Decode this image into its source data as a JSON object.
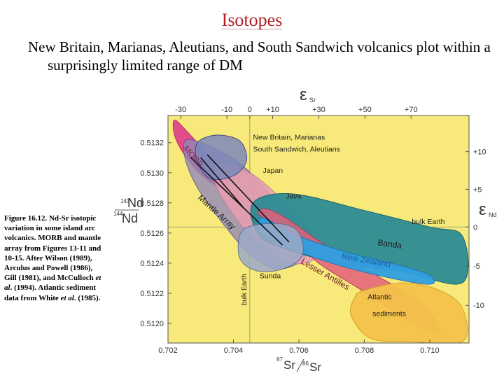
{
  "slide": {
    "title": "Isotopes",
    "subtitle": "New Britain, Marianas, Aleutians, and South Sandwich volcanics plot within a surprisingly limited range of DM",
    "caption_parts": [
      "Figure 16.12. Nd-Sr isotopic variation in some island arc volcanics. MORB and mantle array from Figures 13-11 and 10-15. After Wilson (1989), Arculus and Powell (1986), Gill (1981), and McCulloch ",
      "et al",
      ". (1994). Atlantic sediment data from White ",
      "et al",
      ". (1985)."
    ]
  },
  "colors": {
    "background": "#f7e97a",
    "morb": "#e0458a",
    "mantle_array": "#8f86b8",
    "japan": "#e89fb0",
    "banda": "#2c8c94",
    "new_zealand": "#2f9fe0",
    "lesser_antilles": "#e2607a",
    "atlantic_sediments": "#f3c24a",
    "sunda": "#9ca9c8",
    "new_britain": "#7b88b8"
  },
  "chart_data": {
    "type": "scatter",
    "x_variable": "87Sr/86Sr",
    "y_variable": "143Nd/144Nd",
    "xlim": [
      0.702,
      0.7112
    ],
    "ylim": [
      0.51187,
      0.51338
    ],
    "x_ticks": [
      0.702,
      0.704,
      0.706,
      0.708,
      0.71
    ],
    "x_tick_labels": [
      "0.702",
      "0.704",
      "0.706",
      "0.708",
      "0.710"
    ],
    "y_ticks": [
      0.512,
      0.5122,
      0.5124,
      0.5126,
      0.5128,
      0.513,
      0.5132
    ],
    "y_tick_labels": [
      "0.5120",
      "0.5122",
      "0.5124",
      "0.5126",
      "0.5128",
      "0.5130",
      "0.5132"
    ],
    "top_axis": {
      "label": "εSr",
      "ticks": [
        {
          "label": "-30",
          "x": 0.70239
        },
        {
          "label": "-10",
          "x": 0.7038
        },
        {
          "label": "0",
          "x": 0.7045
        },
        {
          "label": "+10",
          "x": 0.7052
        },
        {
          "label": "+30",
          "x": 0.70661
        },
        {
          "label": "+50",
          "x": 0.70802
        },
        {
          "label": "+70",
          "x": 0.70943
        }
      ]
    },
    "right_axis": {
      "label": "εNd",
      "ticks": [
        {
          "label": "+10",
          "y": 0.51314
        },
        {
          "label": "+5",
          "y": 0.51289
        },
        {
          "label": "0",
          "y": 0.51264
        },
        {
          "label": "-5",
          "y": 0.51238
        },
        {
          "label": "-10",
          "y": 0.51212
        }
      ]
    },
    "bulk_earth": {
      "x": 0.7045,
      "y": 0.51264,
      "x_label": "bulk Earth",
      "y_label": "bulk Earth"
    },
    "fields": [
      {
        "key": "morb",
        "name": "MORB",
        "points": [
          [
            0.7022,
            0.51335
          ],
          [
            0.7026,
            0.51327
          ],
          [
            0.7031,
            0.51315
          ],
          [
            0.7036,
            0.51303
          ],
          [
            0.7039,
            0.51296
          ],
          [
            0.7037,
            0.5129
          ],
          [
            0.7031,
            0.51297
          ],
          [
            0.7025,
            0.51312
          ],
          [
            0.7022,
            0.51325
          ]
        ]
      },
      {
        "key": "mantle_array",
        "name": "Mantle Array",
        "points": [
          [
            0.7027,
            0.51322
          ],
          [
            0.7042,
            0.51306
          ],
          [
            0.7054,
            0.51278
          ],
          [
            0.706,
            0.51258
          ],
          [
            0.7062,
            0.51244
          ],
          [
            0.7054,
            0.51236
          ],
          [
            0.7046,
            0.51244
          ],
          [
            0.7038,
            0.51263
          ],
          [
            0.7029,
            0.5129
          ],
          [
            0.7025,
            0.51312
          ]
        ]
      },
      {
        "key": "japan",
        "name": "Japan",
        "points": [
          [
            0.7036,
            0.51306
          ],
          [
            0.7045,
            0.513
          ],
          [
            0.7054,
            0.51284
          ],
          [
            0.7064,
            0.5126
          ],
          [
            0.7066,
            0.51245
          ],
          [
            0.7058,
            0.5124
          ],
          [
            0.7047,
            0.51255
          ],
          [
            0.7039,
            0.51275
          ],
          [
            0.7034,
            0.51296
          ]
        ]
      },
      {
        "key": "banda",
        "name": "Banda",
        "points": [
          [
            0.7046,
            0.5128
          ],
          [
            0.7058,
            0.51286
          ],
          [
            0.708,
            0.51275
          ],
          [
            0.71,
            0.51264
          ],
          [
            0.711,
            0.51258
          ],
          [
            0.711,
            0.51227
          ],
          [
            0.7092,
            0.51234
          ],
          [
            0.7072,
            0.5124
          ],
          [
            0.7058,
            0.51248
          ],
          [
            0.7048,
            0.51258
          ]
        ]
      },
      {
        "key": "lesser_antilles",
        "name": "Lesser Antilles",
        "points": [
          [
            0.7048,
            0.51272
          ],
          [
            0.7058,
            0.51258
          ],
          [
            0.7066,
            0.5124
          ],
          [
            0.708,
            0.51221
          ],
          [
            0.7095,
            0.512
          ],
          [
            0.7103,
            0.51195
          ],
          [
            0.7097,
            0.51214
          ],
          [
            0.7082,
            0.51234
          ],
          [
            0.7068,
            0.51252
          ],
          [
            0.7056,
            0.5127
          ],
          [
            0.705,
            0.51276
          ]
        ]
      },
      {
        "key": "new_zealand",
        "name": "New Zealand",
        "points": [
          [
            0.7049,
            0.5127
          ],
          [
            0.706,
            0.51258
          ],
          [
            0.7075,
            0.51247
          ],
          [
            0.709,
            0.51239
          ],
          [
            0.71,
            0.51232
          ],
          [
            0.71,
            0.51226
          ],
          [
            0.7086,
            0.51231
          ],
          [
            0.707,
            0.5124
          ],
          [
            0.7056,
            0.51251
          ],
          [
            0.7048,
            0.51261
          ]
        ]
      },
      {
        "key": "atlantic_sediments",
        "name": "Atlantic sediments",
        "points": [
          [
            0.708,
            0.51222
          ],
          [
            0.7092,
            0.51227
          ],
          [
            0.7103,
            0.51222
          ],
          [
            0.711,
            0.5121
          ],
          [
            0.711,
            0.51188
          ],
          [
            0.7094,
            0.51188
          ],
          [
            0.7082,
            0.5119
          ],
          [
            0.7076,
            0.51205
          ],
          [
            0.7077,
            0.51217
          ]
        ]
      },
      {
        "key": "sunda",
        "name": "Sunda",
        "points": [
          [
            0.7042,
            0.51259
          ],
          [
            0.7046,
            0.51265
          ],
          [
            0.7055,
            0.51266
          ],
          [
            0.706,
            0.5126
          ],
          [
            0.7061,
            0.51245
          ],
          [
            0.7055,
            0.51236
          ],
          [
            0.7047,
            0.51235
          ],
          [
            0.7042,
            0.51243
          ]
        ]
      },
      {
        "key": "new_britain",
        "name": "New Britain, Marianas, South Sandwich, Aleutians",
        "points": [
          [
            0.7029,
            0.5132
          ],
          [
            0.7035,
            0.51325
          ],
          [
            0.7042,
            0.51321
          ],
          [
            0.7044,
            0.51308
          ],
          [
            0.704,
            0.51298
          ],
          [
            0.7033,
            0.51296
          ],
          [
            0.7029,
            0.51307
          ]
        ]
      }
    ],
    "field_labels": [
      {
        "key": "morb",
        "text": "MORB",
        "x": 0.70246,
        "y": 0.51316,
        "rotate": 50,
        "color": "#8a2550"
      },
      {
        "key": "mantle_array",
        "text": "Mantle Array",
        "x": 0.7029,
        "y": 0.51283,
        "rotate": 42,
        "color": "#222"
      },
      {
        "key": "new_britain",
        "text": "New Britain, Marianas",
        "x": 0.7046,
        "y": 0.51322,
        "rotate": 0,
        "color": "#222"
      },
      {
        "key": "new_britain_2",
        "text": "South Sandwich, Aleutians",
        "x": 0.7046,
        "y": 0.51314,
        "rotate": 0,
        "color": "#222"
      },
      {
        "key": "japan",
        "text": "Japan",
        "x": 0.7049,
        "y": 0.513,
        "rotate": 0,
        "color": "#222"
      },
      {
        "key": "java",
        "text": "Java",
        "x": 0.7056,
        "y": 0.51283,
        "rotate": 0,
        "color": "#222"
      },
      {
        "key": "bulk_earth_h",
        "text": "bulk Earth",
        "x": 0.70945,
        "y": 0.51266,
        "rotate": 0,
        "color": "#222"
      },
      {
        "key": "banda",
        "text": "Banda",
        "x": 0.7084,
        "y": 0.51252,
        "rotate": 8,
        "color": "#222"
      },
      {
        "key": "new_zealand",
        "text": "New Zealand",
        "x": 0.7073,
        "y": 0.51243,
        "rotate": 10,
        "color": "#1f5fa0"
      },
      {
        "key": "lesser_antilles",
        "text": "Lesser Antilles",
        "x": 0.70605,
        "y": 0.5124,
        "rotate": 30,
        "color": "#6b1a2a"
      },
      {
        "key": "sunda",
        "text": "Sunda",
        "x": 0.7048,
        "y": 0.5123,
        "rotate": 0,
        "color": "#222"
      },
      {
        "key": "atlantic_sediments",
        "text": "Atlantic",
        "x": 0.7081,
        "y": 0.51216,
        "rotate": 0,
        "color": "#222"
      },
      {
        "key": "atlantic_sediments_2",
        "text": "sediments",
        "x": 0.70825,
        "y": 0.51205,
        "rotate": 0,
        "color": "#222"
      }
    ],
    "trend_lines": [
      [
        [
          0.7027,
          0.5131
        ],
        [
          0.7055,
          0.51252
        ]
      ],
      [
        [
          0.7032,
          0.51312
        ],
        [
          0.7057,
          0.51254
        ]
      ],
      [
        [
          0.703,
          0.5131
        ],
        [
          0.7043,
          0.51277
        ]
      ]
    ],
    "axis_labels": {
      "left_num": "143",
      "left_num_el": "Nd",
      "left_den": "144",
      "left_den_el": "Nd",
      "bottom_num": "87",
      "bottom_num_el": "Sr",
      "bottom_den": "86",
      "bottom_den_el": "Sr",
      "top_eps": "ε",
      "top_sub": "Sr",
      "right_eps": "ε",
      "right_sub": "Nd"
    }
  }
}
